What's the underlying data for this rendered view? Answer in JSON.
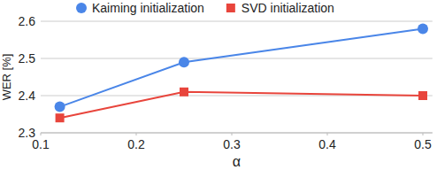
{
  "chart_data": {
    "type": "line",
    "x_label": "α",
    "y_label": "WER [%]",
    "x": [
      0.12,
      0.25,
      0.5
    ],
    "series": [
      {
        "name": "Kaiming initialization",
        "color": "#4a86e8",
        "marker": "circle",
        "values": [
          2.37,
          2.49,
          2.58
        ]
      },
      {
        "name": "SVD initialization",
        "color": "#e8453c",
        "marker": "square",
        "values": [
          2.34,
          2.41,
          2.4
        ]
      }
    ],
    "xlim": [
      0.1,
      0.51
    ],
    "xticks": [
      0.1,
      0.2,
      0.3,
      0.4,
      0.5
    ],
    "ylim": [
      2.3,
      2.6
    ],
    "yticks": [
      2.3,
      2.4,
      2.5,
      2.6
    ],
    "grid": true,
    "legend": "top"
  }
}
